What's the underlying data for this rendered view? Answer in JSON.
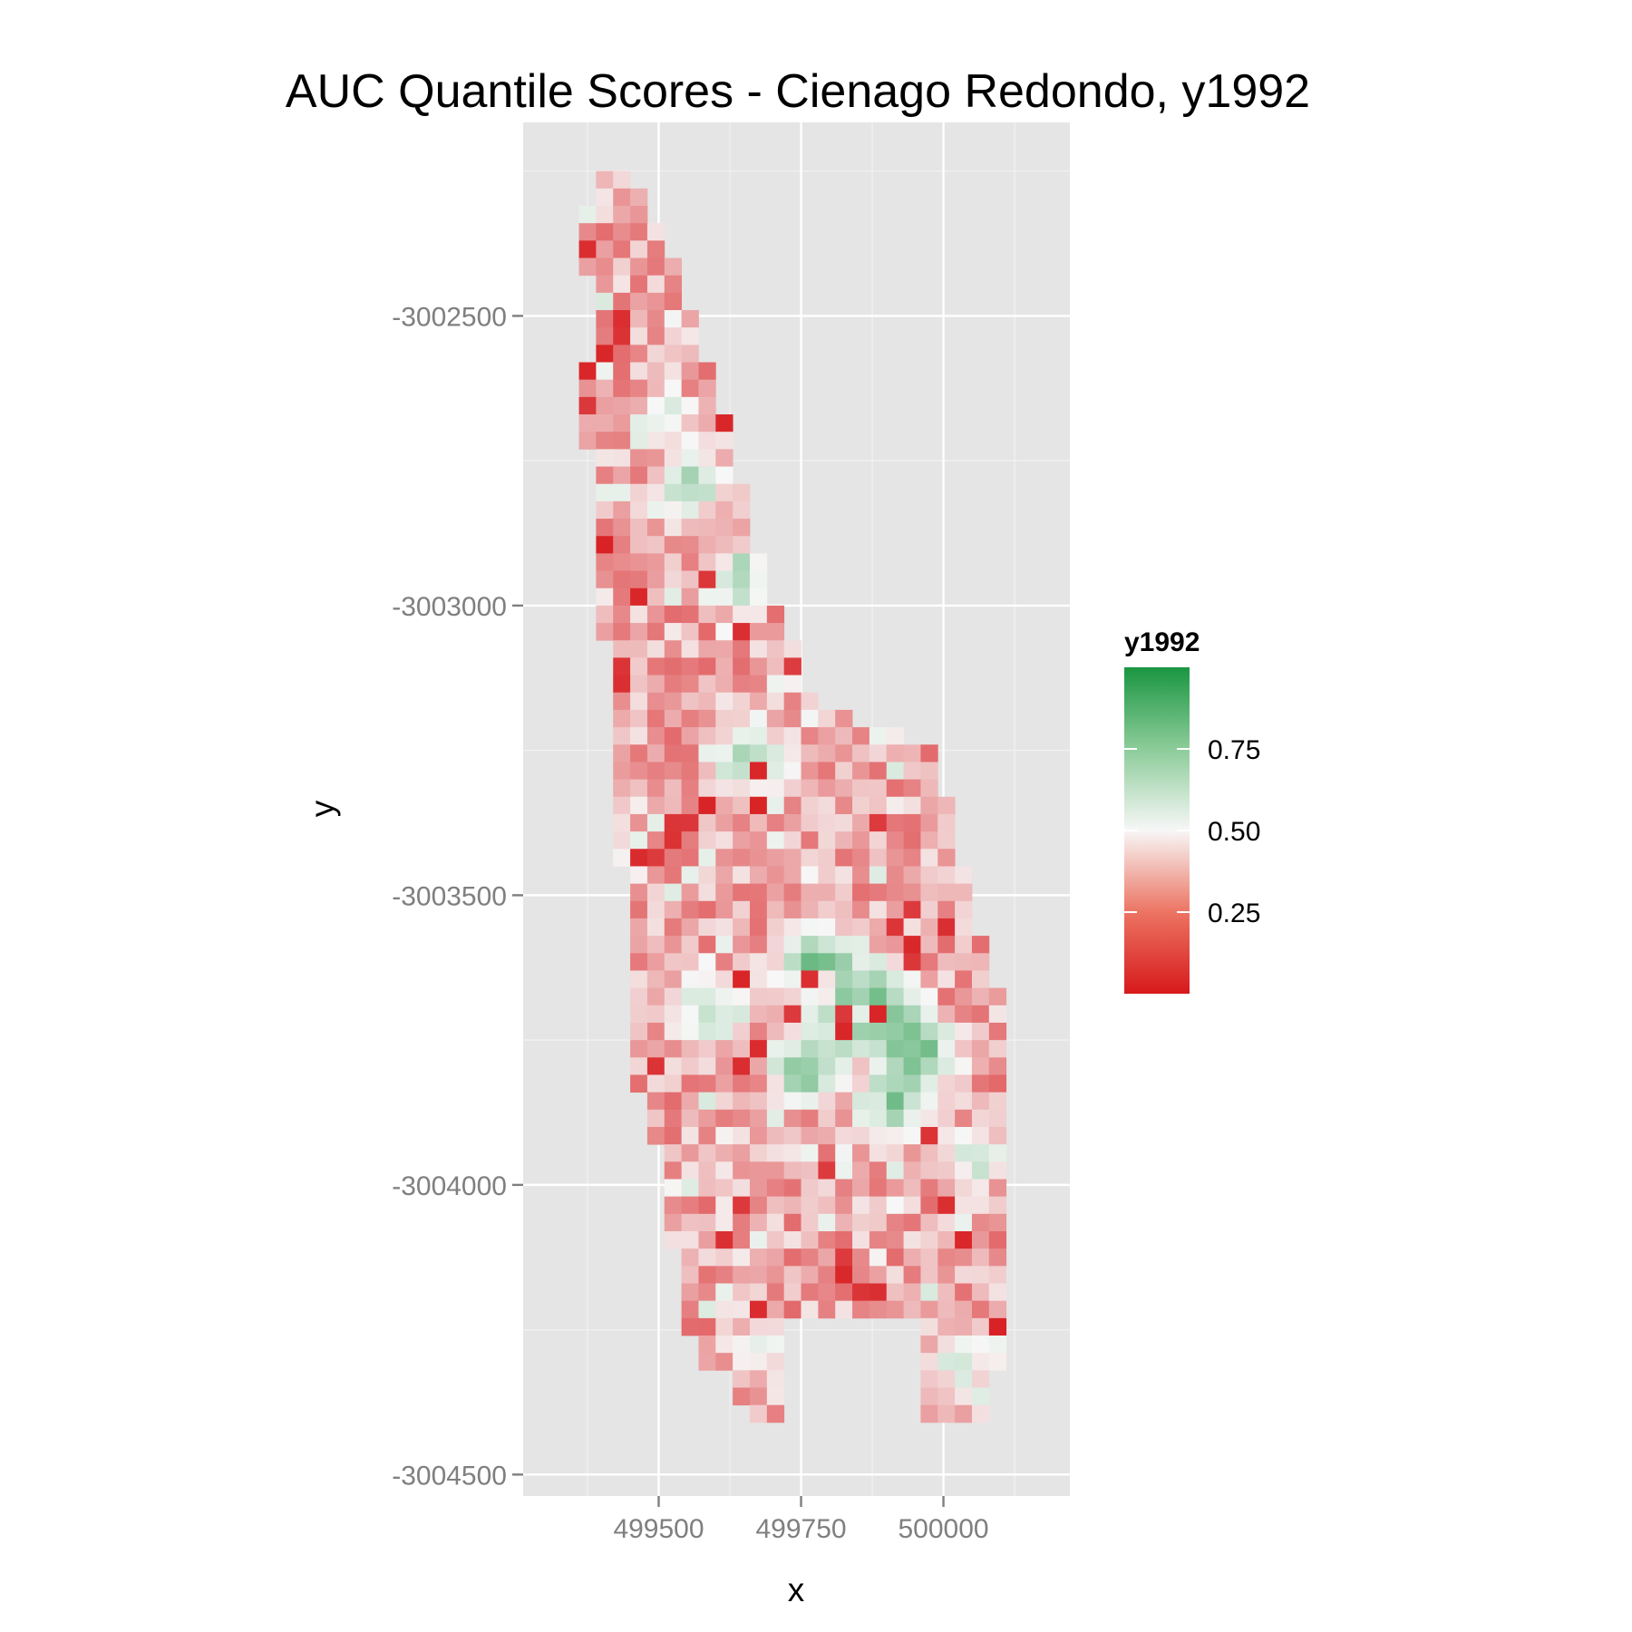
{
  "chart_data": {
    "type": "heatmap",
    "title": "AUC Quantile Scores - Cienago Redondo, y1992",
    "xlabel": "x",
    "ylabel": "y",
    "x_ticks": [
      499500,
      499750,
      500000
    ],
    "y_ticks": [
      -3002500,
      -3003000,
      -3003500,
      -3004000,
      -3004500
    ],
    "x_tick_labels": [
      "499500",
      "499750",
      "500000"
    ],
    "y_tick_labels": [
      "-3002500",
      "-3003000",
      "-3003500",
      "-3004000",
      "-3004500"
    ],
    "xlim": [
      499262,
      500222
    ],
    "ylim": [
      -3004537,
      -3002166
    ],
    "cell_size": 30,
    "grid": true,
    "legend": {
      "title": "y1992",
      "position": "right",
      "breaks": [
        0.25,
        0.5,
        0.75
      ],
      "labels": [
        "0.25",
        "0.50",
        "0.75"
      ],
      "range": [
        0,
        1
      ]
    },
    "color_scale": {
      "low": "#d7191c",
      "mid": "#f7f7f7",
      "high": "#1a9641",
      "midpoint": 0.5
    },
    "region_profile": [
      [
        -3002220,
        499420,
        499420
      ],
      [
        -3002250,
        499400,
        499440
      ],
      [
        -3002280,
        499385,
        499460
      ],
      [
        -3002310,
        499375,
        499480
      ],
      [
        -3002340,
        499375,
        499500
      ],
      [
        -3002400,
        499375,
        499520
      ],
      [
        -3002460,
        499380,
        499540
      ],
      [
        -3002520,
        499380,
        499560
      ],
      [
        -3002580,
        499380,
        499585
      ],
      [
        -3002640,
        499360,
        499605
      ],
      [
        -3002700,
        499375,
        499620
      ],
      [
        -3002760,
        499380,
        499640
      ],
      [
        -3002820,
        499390,
        499650
      ],
      [
        -3002900,
        499390,
        499665
      ],
      [
        -3002960,
        499395,
        499690
      ],
      [
        -3003000,
        499395,
        499710
      ],
      [
        -3003060,
        499410,
        499730
      ],
      [
        -3003120,
        499410,
        499750
      ],
      [
        -3003180,
        499410,
        499800
      ],
      [
        -3003250,
        499420,
        499980
      ],
      [
        -3003320,
        499425,
        500000
      ],
      [
        -3003400,
        499430,
        500020
      ],
      [
        -3003480,
        499440,
        500040
      ],
      [
        -3003550,
        499440,
        500060
      ],
      [
        -3003620,
        499440,
        500080
      ],
      [
        -3003700,
        499450,
        500100
      ],
      [
        -3003800,
        499460,
        500115
      ],
      [
        -3003880,
        499480,
        500120
      ],
      [
        -3003950,
        499500,
        500120
      ],
      [
        -3004050,
        499520,
        500120
      ],
      [
        -3004120,
        499530,
        500120
      ],
      [
        -3004180,
        499540,
        500120
      ],
      [
        -3004230,
        499550,
        500115
      ],
      [
        -3004280,
        499560,
        500115
      ],
      [
        -3004320,
        499600,
        500090
      ],
      [
        -3004380,
        499660,
        500080
      ],
      [
        -3004420,
        499700,
        500060
      ]
    ],
    "value_hotspots": [
      {
        "x": 499555,
        "y": -3002790,
        "r": 45,
        "value": 0.78
      },
      {
        "x": 499510,
        "y": -3002680,
        "r": 40,
        "value": 0.65
      },
      {
        "x": 499640,
        "y": -3002950,
        "r": 50,
        "value": 0.7
      },
      {
        "x": 499660,
        "y": -3003270,
        "r": 55,
        "value": 0.75
      },
      {
        "x": 499780,
        "y": -3003620,
        "r": 60,
        "value": 0.85
      },
      {
        "x": 499880,
        "y": -3003700,
        "r": 70,
        "value": 0.88
      },
      {
        "x": 499960,
        "y": -3003770,
        "r": 60,
        "value": 0.8
      },
      {
        "x": 499760,
        "y": -3003800,
        "r": 50,
        "value": 0.82
      },
      {
        "x": 499910,
        "y": -3003860,
        "r": 50,
        "value": 0.76
      },
      {
        "x": 500060,
        "y": -3003950,
        "r": 40,
        "value": 0.68
      },
      {
        "x": 499590,
        "y": -3003700,
        "r": 55,
        "value": 0.68
      },
      {
        "x": 499680,
        "y": -3004280,
        "r": 45,
        "value": 0.62
      },
      {
        "x": 500030,
        "y": -3004310,
        "r": 45,
        "value": 0.62
      },
      {
        "x": 499440,
        "y": -3003430,
        "r": 30,
        "value": 0.58
      }
    ]
  }
}
